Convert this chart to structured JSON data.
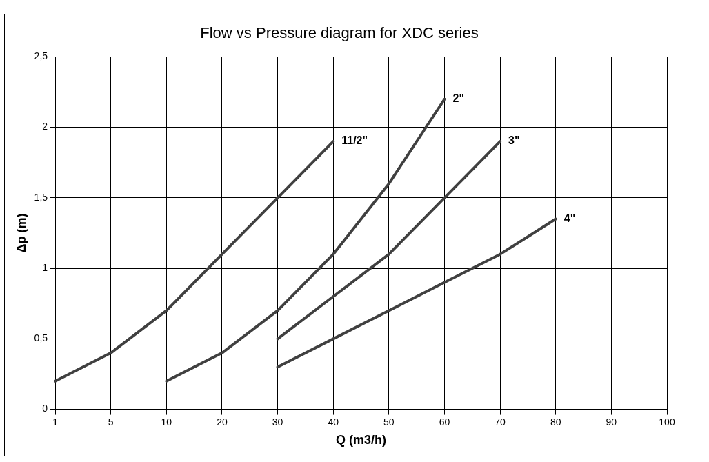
{
  "chart_data": {
    "type": "line",
    "title": "Flow vs Pressure diagram for XDC series",
    "xlabel": "Q (m3/h)",
    "ylabel": "Δp (m)",
    "categories": [
      "1",
      "5",
      "10",
      "20",
      "30",
      "40",
      "50",
      "60",
      "70",
      "80",
      "90",
      "100"
    ],
    "series": [
      {
        "name": "11/2\"",
        "color": "#404040",
        "values": [
          0.2,
          0.4,
          0.7,
          1.1,
          1.5,
          1.9,
          null,
          null,
          null,
          null,
          null,
          null
        ]
      },
      {
        "name": "2\"",
        "color": "#404040",
        "values": [
          null,
          null,
          0.2,
          0.4,
          0.7,
          1.1,
          1.6,
          2.2,
          null,
          null,
          null,
          null
        ]
      },
      {
        "name": "3\"",
        "color": "#404040",
        "values": [
          null,
          null,
          null,
          null,
          0.5,
          0.8,
          1.1,
          1.5,
          1.9,
          null,
          null,
          null
        ]
      },
      {
        "name": "4\"",
        "color": "#404040",
        "values": [
          null,
          null,
          null,
          null,
          0.3,
          0.5,
          0.7,
          0.9,
          1.1,
          1.35,
          null,
          null
        ]
      }
    ],
    "ylim": [
      0,
      2.5
    ],
    "yticks": [
      {
        "value": 0,
        "label": "0"
      },
      {
        "value": 0.5,
        "label": "0,5"
      },
      {
        "value": 1,
        "label": "1"
      },
      {
        "value": 1.5,
        "label": "1,5"
      },
      {
        "value": 2,
        "label": "2"
      },
      {
        "value": 2.5,
        "label": "2,5"
      }
    ],
    "grid": true,
    "legend": false,
    "marker": "none",
    "line_style": "solid"
  }
}
